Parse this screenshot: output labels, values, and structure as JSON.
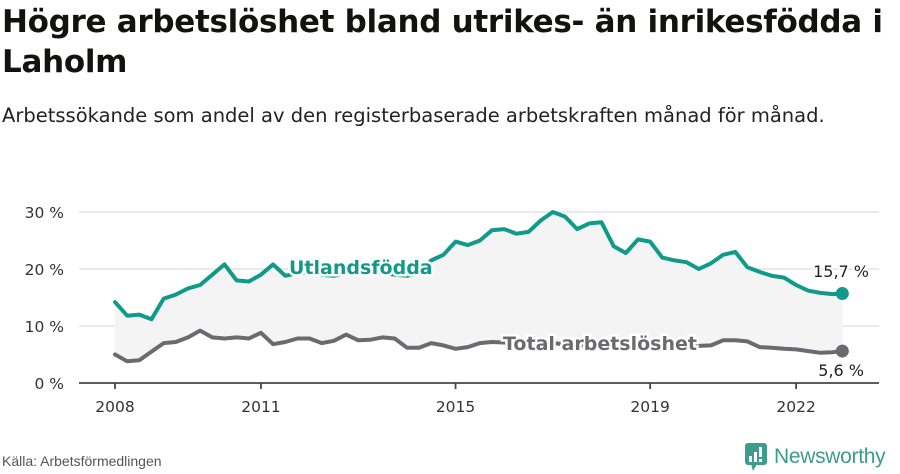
{
  "header": {
    "title": "Högre arbetslöshet bland utrikes- än inrikesfödda i Laholm",
    "subtitle": "Arbetssökande som andel av den registerbaserade arbetskraften månad för månad."
  },
  "footer": {
    "source": "Källa: Arbetsförmedlingen",
    "brand": "Newsworthy",
    "brand_icon": "bar-chart-speech-bubble-icon"
  },
  "colors": {
    "foreign_born": "#0f9a8a",
    "total": "#6b6a6f",
    "band_fill": "#f4f4f4",
    "gridline": "#e3e3e3",
    "axis": "#444444",
    "brand": "#3d9c8c"
  },
  "chart_data": {
    "type": "line",
    "title": "Högre arbetslöshet bland utrikes- än inrikesfödda i Laholm",
    "subtitle": "Arbetssökande som andel av den registerbaserade arbetskraften månad för månad.",
    "xlabel": "",
    "ylabel": "",
    "ylim": [
      0,
      30
    ],
    "yticks": [
      "0 %",
      "10 %",
      "20 %",
      "30 %"
    ],
    "xticks": [
      "2008",
      "2011",
      "2015",
      "2019",
      "2022"
    ],
    "grid": true,
    "legend": "inline labels",
    "x": [
      2008.0,
      2008.25,
      2008.5,
      2008.75,
      2009.0,
      2009.25,
      2009.5,
      2009.75,
      2010.0,
      2010.25,
      2010.5,
      2010.75,
      2011.0,
      2011.25,
      2011.5,
      2011.75,
      2012.0,
      2012.25,
      2012.5,
      2012.75,
      2013.0,
      2013.25,
      2013.5,
      2013.75,
      2014.0,
      2014.25,
      2014.5,
      2014.75,
      2015.0,
      2015.25,
      2015.5,
      2015.75,
      2016.0,
      2016.25,
      2016.5,
      2016.75,
      2017.0,
      2017.25,
      2017.5,
      2017.75,
      2018.0,
      2018.25,
      2018.5,
      2018.75,
      2019.0,
      2019.25,
      2019.5,
      2019.75,
      2020.0,
      2020.25,
      2020.5,
      2020.75,
      2021.0,
      2021.25,
      2021.5,
      2021.75,
      2022.0,
      2022.25,
      2022.5,
      2022.75,
      2022.95
    ],
    "series": [
      {
        "name": "Utlandsfödda",
        "values": [
          14.2,
          11.8,
          12.0,
          11.2,
          14.8,
          15.5,
          16.6,
          17.2,
          19.0,
          20.8,
          18.0,
          17.8,
          19.0,
          20.8,
          18.8,
          19.3,
          19.5,
          19.0,
          18.8,
          19.2,
          19.5,
          19.6,
          19.3,
          19.0,
          18.8,
          19.2,
          21.5,
          22.5,
          24.8,
          24.2,
          25.0,
          26.8,
          27.0,
          26.2,
          26.5,
          28.5,
          30.0,
          29.2,
          27.0,
          28.0,
          28.2,
          24.0,
          22.8,
          25.2,
          24.8,
          22.0,
          21.5,
          21.2,
          20.0,
          21.0,
          22.5,
          23.0,
          20.3,
          19.5,
          18.8,
          18.5,
          17.2,
          16.2,
          15.8,
          15.6,
          15.7
        ],
        "end_label": "15,7 %"
      },
      {
        "name": "Total arbetslöshet",
        "values": [
          5.0,
          3.8,
          4.0,
          5.5,
          7.0,
          7.2,
          8.0,
          9.2,
          8.0,
          7.8,
          8.0,
          7.8,
          8.8,
          6.8,
          7.2,
          7.8,
          7.8,
          7.0,
          7.4,
          8.5,
          7.5,
          7.6,
          8.0,
          7.8,
          6.2,
          6.2,
          7.0,
          6.6,
          6.0,
          6.3,
          7.0,
          7.2,
          7.1,
          6.8,
          6.9,
          6.9,
          7.0,
          6.8,
          6.6,
          6.6,
          6.7,
          6.8,
          6.6,
          6.4,
          6.3,
          6.4,
          6.5,
          6.8,
          6.5,
          6.6,
          7.5,
          7.5,
          7.3,
          6.3,
          6.2,
          6.0,
          5.9,
          5.6,
          5.3,
          5.4,
          5.6
        ],
        "end_label": "5,6 %"
      }
    ],
    "annotations": [
      "Utlandsfödda",
      "Total arbetslöshet",
      "15,7 %",
      "5,6 %"
    ]
  }
}
